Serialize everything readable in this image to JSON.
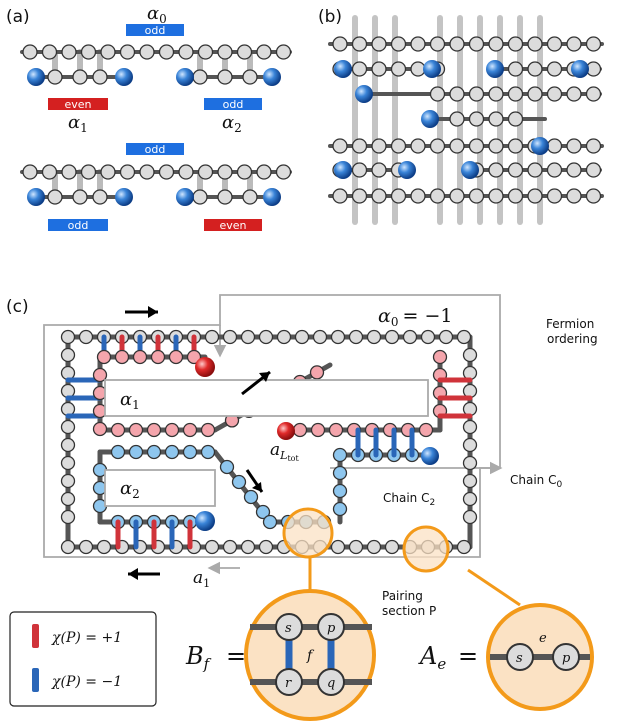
{
  "panels": {
    "a": "(a)",
    "b": "(b)",
    "c": "(c)"
  },
  "panel_a": {
    "top": {
      "alpha0": "α",
      "alpha0_sub": "0",
      "alpha0_badge": "odd",
      "left_badge": "even",
      "right_badge": "odd",
      "alpha1": "α",
      "alpha1_sub": "1",
      "alpha2": "α",
      "alpha2_sub": "2"
    },
    "bottom": {
      "top_badge": "odd",
      "left_badge": "odd",
      "right_badge": "even"
    }
  },
  "panel_c": {
    "alpha0_eq": "α",
    "alpha0_sub": "0",
    "alpha0_val": "= −1",
    "alpha1": "α",
    "alpha1_sub": "1",
    "alpha2": "α",
    "alpha2_sub": "2",
    "a_ltot": "a",
    "a_ltot_sub": "L",
    "a_ltot_subsub": "tot",
    "a1": "a",
    "a1_sub": "1",
    "fermion_ordering_1": "Fermion",
    "fermion_ordering_2": "ordering",
    "chain_c2": "Chain C",
    "chain_c2_sub": "2",
    "chain_c0": "Chain C",
    "chain_c0_sub": "0",
    "pairing_1": "Pairing",
    "pairing_2": "section P",
    "legend_plus": "χ(P) = +1",
    "legend_minus": "χ(P) = −1",
    "bf": "B",
    "bf_sub": "f",
    "ae": "A",
    "ae_sub": "e",
    "eq": "=",
    "node_s": "s",
    "node_p": "p",
    "node_r": "r",
    "node_q": "q",
    "face_f": "f",
    "edge_e": "e"
  },
  "colors": {
    "red": "#d42020",
    "blue": "#1e6fe0",
    "orange": "#f39a1a",
    "peach": "#fbe2c4",
    "chain": "#555555",
    "node": "#dcdcdc",
    "node_pink": "#f4a5ac",
    "node_blue": "#8ec6ee",
    "rung_red": "#d0333a",
    "rung_blue": "#2a66b8"
  }
}
